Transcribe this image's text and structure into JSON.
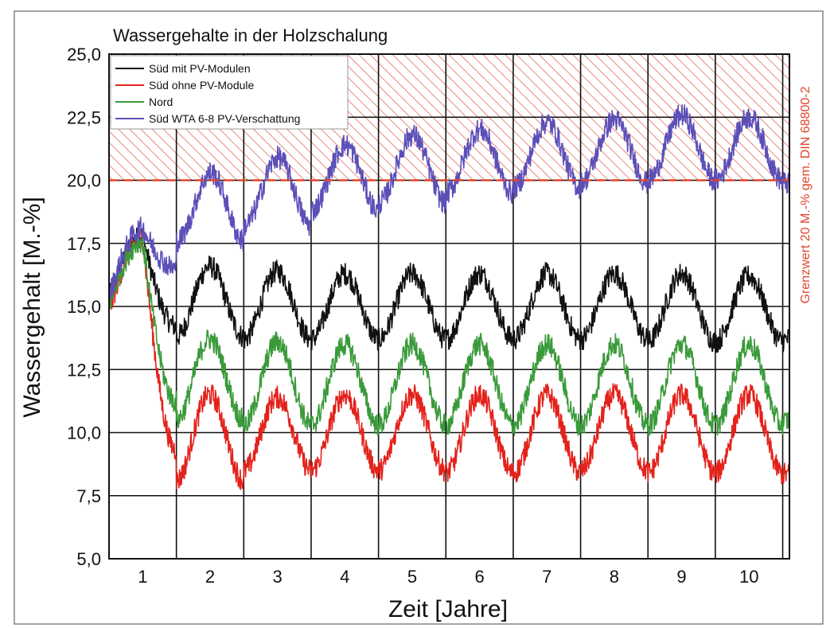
{
  "chart_data": {
    "type": "line",
    "title": "Wassergehalte in der Holzschalung",
    "xlabel": "Zeit [Jahre]",
    "ylabel": "Wassergehalt [M.-%]",
    "xlim": [
      0.5,
      10.6
    ],
    "ylim": [
      5.0,
      25.0
    ],
    "x_ticks": [
      1,
      2,
      3,
      4,
      5,
      6,
      7,
      8,
      9,
      10
    ],
    "x_tick_labels": [
      "1",
      "2",
      "3",
      "4",
      "5",
      "6",
      "7",
      "8",
      "9",
      "10"
    ],
    "y_ticks": [
      5.0,
      7.5,
      10.0,
      12.5,
      15.0,
      17.5,
      20.0,
      22.5,
      25.0
    ],
    "y_tick_labels": [
      "5,0",
      "7,5",
      "10,0",
      "12,5",
      "15,0",
      "17,5",
      "20,0",
      "22,5",
      "25,0"
    ],
    "grid": true,
    "legend_position": "top-left",
    "limit_line": {
      "y": 20.0,
      "label": "Grenzwert 20 M.-% gem. DIN 68800-2",
      "color": "#e0452e",
      "hatched_region_above": true
    },
    "series": [
      {
        "name": "Süd mit PV-Modulen",
        "color": "#111111",
        "start": 15.3,
        "peak_first": 17.8,
        "yearly_min": [
          null,
          14.2,
          13.8,
          13.7,
          13.7,
          13.7,
          13.7,
          13.7,
          13.7,
          13.6,
          13.6
        ],
        "yearly_max": [
          17.8,
          16.9,
          16.6,
          16.4,
          16.3,
          16.3,
          16.3,
          16.3,
          16.3,
          16.3,
          16.2
        ],
        "end": 13.7
      },
      {
        "name": "Süd ohne PV-Module",
        "color": "#e3221b",
        "start": 14.8,
        "peak_first": 17.7,
        "yearly_min": [
          null,
          9.3,
          8.1,
          8.5,
          8.5,
          8.5,
          8.4,
          8.4,
          8.5,
          8.4,
          8.4
        ],
        "yearly_max": [
          17.7,
          12.3,
          11.5,
          11.4,
          11.5,
          11.5,
          11.5,
          11.5,
          11.5,
          11.5,
          11.5
        ],
        "end": 8.3
      },
      {
        "name": "Nord",
        "color": "#3a9a3a",
        "start": 15.0,
        "peak_first": 17.6,
        "yearly_min": [
          null,
          11.2,
          10.5,
          10.3,
          10.3,
          10.3,
          10.3,
          10.3,
          10.3,
          10.3,
          10.3
        ],
        "yearly_max": [
          17.6,
          14.3,
          13.7,
          13.6,
          13.5,
          13.5,
          13.5,
          13.5,
          13.5,
          13.5,
          13.5
        ],
        "end": 10.5
      },
      {
        "name": "Süd WTA 6-8 PV-Verschattung",
        "color": "#5b4fb8",
        "start": 15.4,
        "peak_first": 18.1,
        "yearly_min": [
          null,
          16.5,
          17.6,
          18.2,
          18.8,
          19.1,
          19.5,
          19.7,
          19.9,
          20.0,
          20.0
        ],
        "yearly_max": [
          18.1,
          19.3,
          20.3,
          20.9,
          21.4,
          21.8,
          22.0,
          22.3,
          22.4,
          22.6,
          22.5
        ],
        "end": 19.8
      }
    ]
  }
}
